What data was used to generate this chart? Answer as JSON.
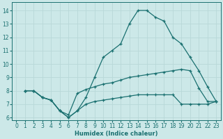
{
  "xlabel": "Humidex (Indice chaleur)",
  "bg_color": "#cce8e8",
  "line_color": "#1a7070",
  "grid_color": "#b8d8d8",
  "xlim": [
    -0.5,
    23.5
  ],
  "ylim": [
    5.8,
    14.6
  ],
  "yticks": [
    6,
    7,
    8,
    9,
    10,
    11,
    12,
    13,
    14
  ],
  "xticks": [
    0,
    1,
    2,
    3,
    4,
    5,
    6,
    7,
    8,
    9,
    10,
    11,
    12,
    13,
    14,
    15,
    16,
    17,
    18,
    19,
    20,
    21,
    22,
    23
  ],
  "line1_x": [
    1,
    2,
    3,
    4,
    5,
    6,
    7,
    8,
    9,
    10,
    11,
    12,
    13,
    14,
    15,
    16,
    17,
    18,
    19,
    20,
    21,
    22,
    23
  ],
  "line1_y": [
    8.0,
    8.0,
    7.5,
    7.3,
    6.5,
    6.0,
    6.5,
    7.5,
    9.0,
    10.5,
    11.0,
    11.5,
    13.0,
    14.0,
    14.0,
    13.5,
    13.2,
    12.0,
    11.5,
    10.5,
    9.5,
    8.3,
    7.2
  ],
  "line2_x": [
    1,
    2,
    3,
    4,
    5,
    6,
    7,
    8,
    9,
    10,
    11,
    12,
    13,
    14,
    15,
    16,
    17,
    18,
    19,
    20,
    21,
    22,
    23
  ],
  "line2_y": [
    8.0,
    8.0,
    7.5,
    7.3,
    6.5,
    6.2,
    7.8,
    8.1,
    8.3,
    8.5,
    8.6,
    8.8,
    9.0,
    9.1,
    9.2,
    9.3,
    9.4,
    9.5,
    9.6,
    9.5,
    8.2,
    7.2,
    7.2
  ],
  "line3_x": [
    1,
    2,
    3,
    4,
    5,
    6,
    7,
    8,
    9,
    10,
    11,
    12,
    13,
    14,
    15,
    16,
    17,
    18,
    19,
    20,
    21,
    22,
    23
  ],
  "line3_y": [
    8.0,
    8.0,
    7.5,
    7.3,
    6.5,
    6.0,
    6.5,
    7.0,
    7.2,
    7.3,
    7.4,
    7.5,
    7.6,
    7.7,
    7.7,
    7.7,
    7.7,
    7.7,
    7.0,
    7.0,
    7.0,
    7.0,
    7.2
  ]
}
